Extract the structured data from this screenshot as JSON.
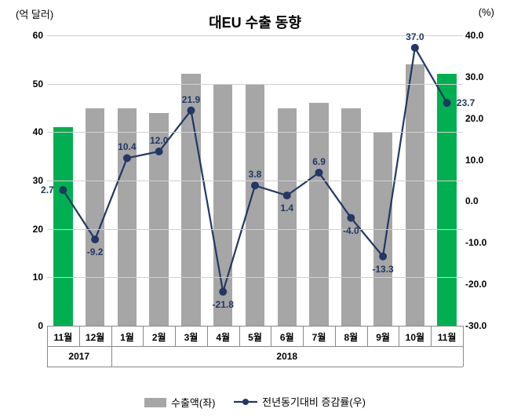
{
  "chart": {
    "type": "bar+line",
    "title": "대EU 수출 동향",
    "y_left_label": "(억 달러)",
    "y_right_label": "(%)",
    "title_fontsize": 18,
    "label_fontsize": 13,
    "tick_fontsize": 12,
    "datalabel_fontsize": 12,
    "background_color": "#ffffff",
    "grid_color": "#d0d0d0",
    "axis_color": "#888888",
    "bar_color_default": "#a6a6a6",
    "bar_color_highlight": "#00b050",
    "line_color": "#203864",
    "marker_color": "#203864",
    "marker_size": 5,
    "line_width": 2.2,
    "bar_width_ratio": 0.6,
    "y_left": {
      "min": 0,
      "max": 60,
      "step": 10
    },
    "y_right": {
      "min": -30.0,
      "max": 40.0,
      "step": 10.0
    },
    "categories": [
      "11월",
      "12월",
      "1월",
      "2월",
      "3월",
      "4월",
      "5월",
      "6월",
      "7월",
      "8월",
      "9월",
      "10월",
      "11월"
    ],
    "year_groups": [
      {
        "label": "2017",
        "span": [
          0,
          1
        ]
      },
      {
        "label": "2018",
        "span": [
          2,
          12
        ]
      }
    ],
    "bar_values": [
      41,
      45,
      45,
      44,
      52,
      50,
      50,
      45,
      46,
      45,
      40,
      54,
      52
    ],
    "bar_highlight_idx": [
      0,
      12
    ],
    "line_values": [
      2.7,
      -9.2,
      10.4,
      12.0,
      21.9,
      -21.8,
      3.8,
      1.4,
      6.9,
      -4.0,
      -13.3,
      37.0,
      23.7
    ],
    "line_labels": [
      "2.7",
      "-9.2",
      "10.4",
      "12.0",
      "21.9",
      "-21.8",
      "3.8",
      "1.4",
      "6.9",
      "-4.0",
      "-13.3",
      "37.0",
      "23.7"
    ],
    "label_positions": [
      "left",
      "below",
      "above",
      "above",
      "above",
      "below",
      "above",
      "below",
      "above",
      "below",
      "below",
      "above",
      "right"
    ],
    "datalabel_color": "#203864",
    "legend": {
      "bar_label": "수출액(좌)",
      "line_label": "전년동기대비 증감률(우)"
    }
  }
}
